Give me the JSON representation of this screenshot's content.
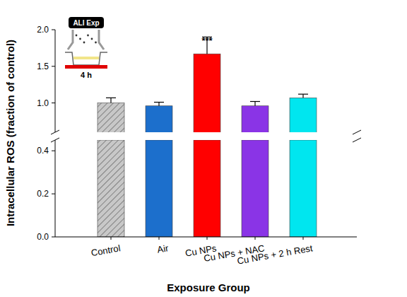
{
  "chart_data": {
    "type": "bar",
    "x_label": "Exposure Group",
    "y_label": "Intracellular ROS (fraction of control)",
    "categories": [
      "Control",
      "Air",
      "Cu NPs",
      "Cu NPs + NAC",
      "Cu NPs + 2 h Rest"
    ],
    "values": [
      1.0,
      0.96,
      1.67,
      0.96,
      1.07
    ],
    "errors": [
      0.07,
      0.05,
      0.23,
      0.06,
      0.05
    ],
    "colors": [
      "#c8c8c8",
      "#1c6fcc",
      "#ff0000",
      "#8a34e6",
      "#00e6ef"
    ],
    "ylim": [
      0,
      2.0
    ],
    "y_break": [
      0.45,
      0.6
    ],
    "yticks": [
      {
        "value": 0,
        "label": "0.0"
      },
      {
        "value": 0.2,
        "label": "0.2"
      },
      {
        "value": 0.4,
        "label": "0.4"
      },
      {
        "value": 1.0,
        "label": "1.0"
      },
      {
        "value": 1.5,
        "label": "1.5"
      },
      {
        "value": 2.0,
        "label": "2.0"
      }
    ],
    "annotations": [
      {
        "text": "***",
        "category": "Cu NPs"
      }
    ],
    "inset": {
      "label": "ALI Exp",
      "time": "4 h"
    }
  }
}
